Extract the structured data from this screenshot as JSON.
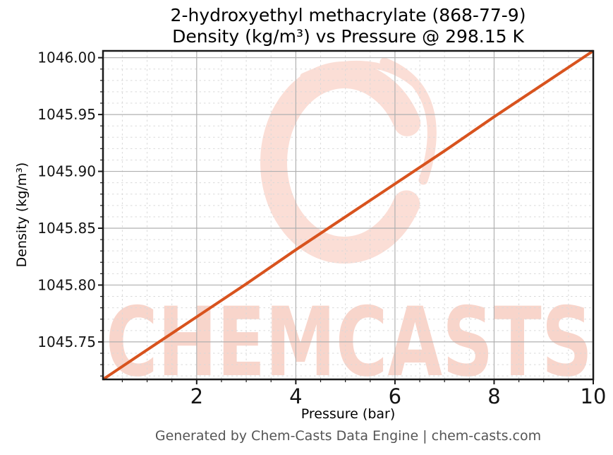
{
  "header": {
    "title_line1": "2-hydroxyethyl methacrylate (868-77-9)",
    "title_line2": "Density (kg/m³) vs Pressure @ 298.15 K"
  },
  "chart_data": {
    "type": "line",
    "title": "2-hydroxyethyl methacrylate (868-77-9) Density (kg/m³) vs Pressure @ 298.15 K",
    "xlabel": "Pressure (bar)",
    "ylabel": "Density (kg/m³)",
    "xlim": [
      0.11,
      10
    ],
    "ylim": [
      1045.717,
      1046.006
    ],
    "x_major_ticks": [
      2,
      4,
      6,
      8,
      10
    ],
    "x_major_tick_labels": [
      "2",
      "4",
      "6",
      "8",
      "10"
    ],
    "x_minor_tick_step": 0.5,
    "y_major_ticks": [
      1045.75,
      1045.8,
      1045.85,
      1045.9,
      1045.95,
      1046.0
    ],
    "y_major_tick_labels": [
      "1045.75",
      "1045.80",
      "1045.85",
      "1045.90",
      "1045.95",
      "1046.00"
    ],
    "y_minor_tick_step": 0.01,
    "grid": true,
    "legend": "none",
    "series": [
      {
        "name": "density-vs-pressure",
        "color": "#d8531e",
        "x": [
          0.11,
          1,
          2,
          3,
          4,
          5,
          6,
          7,
          8,
          9,
          10
        ],
        "y": [
          1045.717,
          1045.743,
          1045.772,
          1045.801,
          1045.831,
          1045.86,
          1045.889,
          1045.918,
          1045.948,
          1045.977,
          1046.006
        ]
      }
    ]
  },
  "watermark": {
    "text": "CHEMCASTS"
  },
  "footer": {
    "credit": "Generated by Chem-Casts Data Engine | chem-casts.com"
  },
  "colors": {
    "line": "#d8531e",
    "major_grid": "#b0b0b0",
    "minor_grid": "#d9d9d9",
    "axis": "#1a1a1a",
    "tick_label": "#141414",
    "footer_text": "#555555",
    "watermark_pink": "#f8d1c6",
    "watermark_ring": "#fbded6"
  }
}
